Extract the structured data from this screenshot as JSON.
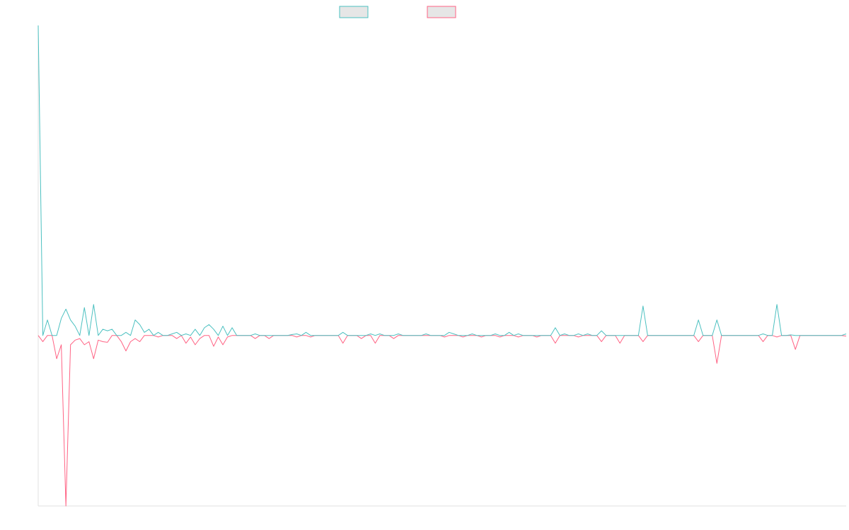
{
  "chart_data": {
    "type": "line",
    "title": "",
    "xlabel": "",
    "ylabel": "",
    "ylim": [
      -0.55,
      1.0
    ],
    "grid": false,
    "legend_placement": "top-center",
    "legend": [
      {
        "name": "",
        "color": "#4bc0c0",
        "fill": "#e6e6e6"
      },
      {
        "name": "",
        "color": "#ff6384",
        "fill": "#e6e6e6"
      }
    ],
    "x_count": 176,
    "series": [
      {
        "name": "",
        "color": "#4bc0c0",
        "points": [
          [
            0,
            1.0
          ],
          [
            1,
            0.0
          ],
          [
            2,
            0.05
          ],
          [
            3,
            0.0
          ],
          [
            5,
            0.055
          ],
          [
            6,
            0.085
          ],
          [
            7,
            0.05
          ],
          [
            8,
            0.03
          ],
          [
            9,
            0.0
          ],
          [
            10,
            0.09
          ],
          [
            11,
            0.0
          ],
          [
            12,
            0.1
          ],
          [
            13,
            0.0
          ],
          [
            14,
            0.02
          ],
          [
            15,
            0.015
          ],
          [
            16,
            0.02
          ],
          [
            17,
            0.0
          ],
          [
            19,
            0.01
          ],
          [
            20,
            0.0
          ],
          [
            21,
            0.05
          ],
          [
            22,
            0.035
          ],
          [
            23,
            0.01
          ],
          [
            24,
            0.02
          ],
          [
            25,
            0.0
          ],
          [
            26,
            0.01
          ],
          [
            29,
            0.005
          ],
          [
            30,
            0.01
          ],
          [
            31,
            0.0
          ],
          [
            32,
            0.005
          ],
          [
            33,
            0.0
          ],
          [
            34,
            0.02
          ],
          [
            35,
            0.0
          ],
          [
            36,
            0.025
          ],
          [
            37,
            0.035
          ],
          [
            38,
            0.02
          ],
          [
            39,
            0.0
          ],
          [
            40,
            0.03
          ],
          [
            41,
            0.0
          ],
          [
            42,
            0.025
          ],
          [
            43,
            0.0
          ],
          [
            47,
            0.005
          ],
          [
            48,
            0.0
          ],
          [
            55,
            0.003
          ],
          [
            56,
            0.005
          ],
          [
            58,
            0.01
          ],
          [
            59,
            0.0
          ],
          [
            66,
            0.01
          ],
          [
            67,
            0.0
          ],
          [
            72,
            0.005
          ],
          [
            74,
            0.005
          ],
          [
            78,
            0.005
          ],
          [
            84,
            0.005
          ],
          [
            89,
            0.01
          ],
          [
            90,
            0.005
          ],
          [
            94,
            0.005
          ],
          [
            99,
            0.005
          ],
          [
            100,
            0.0
          ],
          [
            102,
            0.01
          ],
          [
            103,
            0.0
          ],
          [
            104,
            0.005
          ],
          [
            112,
            0.025
          ],
          [
            113,
            0.0
          ],
          [
            114,
            0.005
          ],
          [
            117,
            0.005
          ],
          [
            119,
            0.005
          ],
          [
            122,
            0.015
          ],
          [
            123,
            0.0
          ],
          [
            131,
            0.095
          ],
          [
            132,
            0.0
          ],
          [
            143,
            0.05
          ],
          [
            144,
            0.0
          ],
          [
            147,
            0.05
          ],
          [
            148,
            0.0
          ],
          [
            157,
            0.005
          ],
          [
            160,
            0.1
          ],
          [
            161,
            0.0
          ],
          [
            163,
            0.002
          ],
          [
            175,
            0.005
          ]
        ]
      },
      {
        "name": "",
        "color": "#ff6384",
        "points": [
          [
            0,
            0.0
          ],
          [
            1,
            -0.02
          ],
          [
            2,
            0.0
          ],
          [
            4,
            -0.075
          ],
          [
            5,
            -0.03
          ],
          [
            6,
            -0.55
          ],
          [
            7,
            -0.03
          ],
          [
            8,
            -0.015
          ],
          [
            9,
            -0.01
          ],
          [
            10,
            -0.03
          ],
          [
            11,
            -0.02
          ],
          [
            12,
            -0.075
          ],
          [
            13,
            -0.015
          ],
          [
            14,
            -0.02
          ],
          [
            15,
            -0.022
          ],
          [
            16,
            0.0
          ],
          [
            18,
            -0.02
          ],
          [
            19,
            -0.05
          ],
          [
            20,
            -0.02
          ],
          [
            21,
            -0.01
          ],
          [
            22,
            -0.02
          ],
          [
            23,
            0.0
          ],
          [
            26,
            -0.005
          ],
          [
            30,
            -0.01
          ],
          [
            32,
            -0.025
          ],
          [
            33,
            -0.005
          ],
          [
            34,
            -0.03
          ],
          [
            35,
            -0.01
          ],
          [
            38,
            -0.035
          ],
          [
            39,
            -0.005
          ],
          [
            40,
            -0.03
          ],
          [
            41,
            -0.005
          ],
          [
            47,
            -0.01
          ],
          [
            48,
            0.0
          ],
          [
            50,
            -0.01
          ],
          [
            51,
            0.0
          ],
          [
            56,
            -0.005
          ],
          [
            59,
            -0.005
          ],
          [
            60,
            0.0
          ],
          [
            66,
            -0.025
          ],
          [
            67,
            0.0
          ],
          [
            70,
            -0.01
          ],
          [
            71,
            0.0
          ],
          [
            73,
            -0.025
          ],
          [
            74,
            0.0
          ],
          [
            77,
            -0.01
          ],
          [
            78,
            0.0
          ],
          [
            88,
            -0.005
          ],
          [
            89,
            0.0
          ],
          [
            92,
            -0.005
          ],
          [
            96,
            -0.005
          ],
          [
            100,
            -0.005
          ],
          [
            104,
            -0.005
          ],
          [
            108,
            -0.005
          ],
          [
            112,
            -0.025
          ],
          [
            113,
            0.0
          ],
          [
            117,
            -0.005
          ],
          [
            122,
            -0.02
          ],
          [
            123,
            0.0
          ],
          [
            126,
            -0.025
          ],
          [
            127,
            0.0
          ],
          [
            131,
            -0.02
          ],
          [
            132,
            0.0
          ],
          [
            143,
            -0.02
          ],
          [
            144,
            0.0
          ],
          [
            147,
            -0.09
          ],
          [
            148,
            0.0
          ],
          [
            157,
            -0.02
          ],
          [
            158,
            0.0
          ],
          [
            160,
            -0.005
          ],
          [
            164,
            -0.045
          ],
          [
            165,
            0.0
          ],
          [
            175,
            -0.002
          ]
        ]
      }
    ]
  }
}
